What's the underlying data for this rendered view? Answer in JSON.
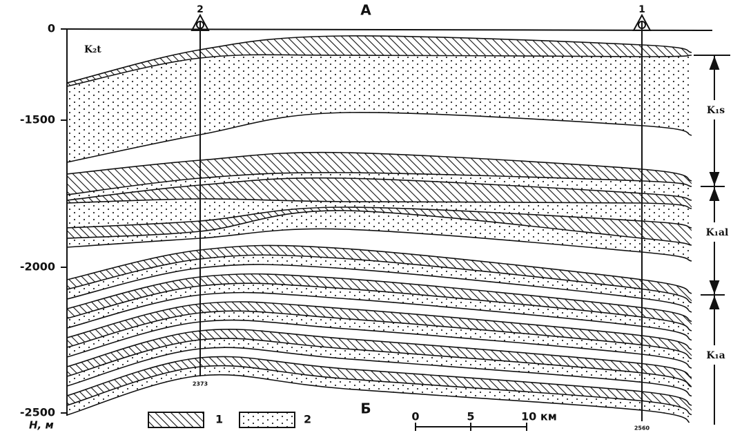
{
  "section": {
    "start_label": "А",
    "end_label": "Б"
  },
  "depth_axis": {
    "ticks": [
      "0",
      "-1500",
      "-2000",
      "-2500"
    ],
    "label": "H, м"
  },
  "formations": {
    "top": "K₂t",
    "right": [
      "K₁s",
      "K₁al",
      "K₁a"
    ]
  },
  "wells": [
    {
      "number": "2",
      "depth": "2373"
    },
    {
      "number": "1",
      "depth": "2560"
    }
  ],
  "legend": {
    "items": [
      "1",
      "2"
    ]
  },
  "scale": {
    "ticks": [
      "0",
      "5",
      "10 км"
    ]
  }
}
